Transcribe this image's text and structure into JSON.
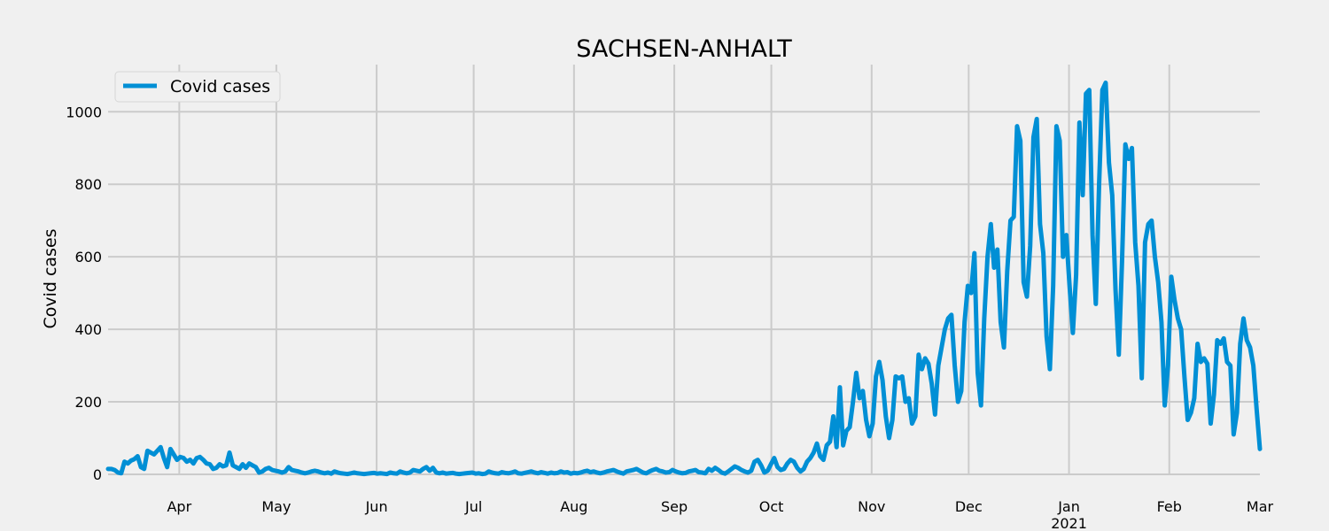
{
  "chart_data": {
    "type": "line",
    "title": "SACHSEN-ANHALT",
    "xlabel": "",
    "ylabel": "Covid cases",
    "ylim": [
      0,
      1130
    ],
    "xlim": [
      "2020-03-10",
      "2021-03-01"
    ],
    "grid": true,
    "legend_position": "top-left",
    "colors": {
      "line": "#008fd5",
      "grid": "#cbcbcb",
      "background": "#f0f0f0"
    },
    "y_ticks": [
      0,
      200,
      400,
      600,
      800,
      1000
    ],
    "y_tick_labels": [
      "0",
      "200",
      "400",
      "600",
      "800",
      "1000"
    ],
    "x_ticks": [
      {
        "date": "2020-04-01",
        "label": "Apr"
      },
      {
        "date": "2020-05-01",
        "label": "May"
      },
      {
        "date": "2020-06-01",
        "label": "Jun"
      },
      {
        "date": "2020-07-01",
        "label": "Jul"
      },
      {
        "date": "2020-08-01",
        "label": "Aug"
      },
      {
        "date": "2020-09-01",
        "label": "Sep"
      },
      {
        "date": "2020-10-01",
        "label": "Oct"
      },
      {
        "date": "2020-11-01",
        "label": "Nov"
      },
      {
        "date": "2020-12-01",
        "label": "Dec"
      },
      {
        "date": "2021-01-01",
        "label": "Jan"
      },
      {
        "date": "2021-02-01",
        "label": "Feb"
      },
      {
        "date": "2021-03-01",
        "label": "Mar"
      }
    ],
    "year_label": "2021",
    "series": [
      {
        "name": "Covid cases",
        "start_date": "2020-03-10",
        "values": [
          15,
          15,
          12,
          5,
          3,
          35,
          30,
          38,
          42,
          50,
          20,
          15,
          65,
          60,
          55,
          65,
          75,
          45,
          20,
          70,
          55,
          40,
          48,
          45,
          35,
          40,
          30,
          45,
          48,
          40,
          30,
          28,
          15,
          18,
          28,
          22,
          25,
          60,
          25,
          20,
          15,
          28,
          18,
          30,
          25,
          20,
          5,
          8,
          15,
          18,
          12,
          10,
          8,
          5,
          8,
          20,
          12,
          10,
          8,
          5,
          3,
          5,
          8,
          10,
          8,
          5,
          3,
          5,
          2,
          8,
          5,
          3,
          2,
          1,
          3,
          5,
          3,
          2,
          1,
          2,
          3,
          4,
          2,
          3,
          2,
          1,
          5,
          3,
          2,
          8,
          5,
          3,
          5,
          12,
          10,
          8,
          15,
          20,
          10,
          18,
          5,
          3,
          5,
          2,
          3,
          4,
          2,
          1,
          2,
          3,
          4,
          5,
          2,
          3,
          1,
          2,
          8,
          5,
          3,
          2,
          6,
          4,
          3,
          5,
          8,
          3,
          2,
          4,
          6,
          8,
          5,
          3,
          6,
          4,
          2,
          5,
          3,
          4,
          8,
          5,
          6,
          2,
          4,
          3,
          5,
          8,
          10,
          6,
          8,
          5,
          3,
          5,
          8,
          10,
          12,
          8,
          5,
          2,
          8,
          10,
          12,
          15,
          10,
          5,
          3,
          8,
          12,
          15,
          10,
          8,
          5,
          6,
          12,
          8,
          5,
          3,
          4,
          8,
          10,
          12,
          6,
          5,
          3,
          15,
          10,
          18,
          12,
          5,
          2,
          8,
          15,
          22,
          18,
          12,
          8,
          5,
          10,
          35,
          40,
          25,
          5,
          10,
          28,
          45,
          20,
          12,
          15,
          30,
          40,
          35,
          18,
          8,
          15,
          35,
          45,
          60,
          85,
          50,
          40,
          80,
          90,
          160,
          75,
          240,
          80,
          120,
          130,
          200,
          280,
          210,
          230,
          150,
          105,
          140,
          270,
          310,
          260,
          160,
          100,
          150,
          270,
          265,
          270,
          200,
          210,
          140,
          160,
          330,
          290,
          320,
          305,
          250,
          165,
          300,
          350,
          400,
          430,
          440,
          300,
          200,
          230,
          420,
          520,
          500,
          610,
          280,
          190,
          430,
          600,
          690,
          570,
          620,
          420,
          350,
          560,
          700,
          710,
          960,
          920,
          530,
          490,
          630,
          930,
          980,
          690,
          610,
          380,
          290,
          520,
          960,
          920,
          600,
          660,
          520,
          390,
          550,
          970,
          770,
          1050,
          1060,
          660,
          470,
          800,
          1060,
          1080,
          860,
          770,
          510,
          330,
          590,
          910,
          870,
          900,
          640,
          520,
          265,
          640,
          690,
          700,
          600,
          530,
          420,
          190,
          300,
          545,
          480,
          430,
          400,
          270,
          150,
          170,
          210,
          360,
          310,
          320,
          305,
          140,
          220,
          370,
          360,
          375,
          310,
          300,
          110,
          170,
          360,
          430,
          370,
          350,
          300,
          180,
          70
        ]
      }
    ]
  }
}
